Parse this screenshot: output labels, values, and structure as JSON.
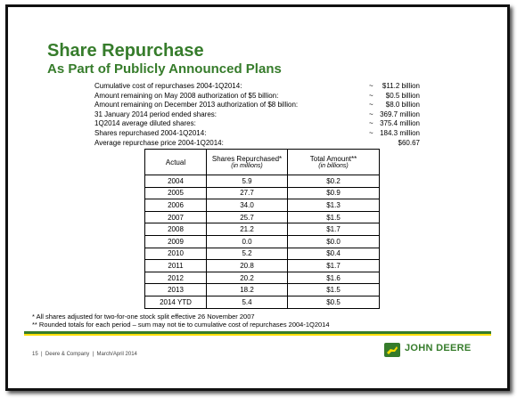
{
  "header": {
    "title": "Share Repurchase",
    "subtitle": "As Part of Publicly Announced Plans"
  },
  "summary": [
    {
      "label": "Cumulative cost of repurchases 2004-1Q2014:",
      "approx": "~",
      "value": "$11.2 billion"
    },
    {
      "label": "Amount remaining on May 2008 authorization of $5 billion:",
      "approx": "~",
      "value": "$0.5 billion"
    },
    {
      "label": "Amount remaining on December 2013 authorization of $8 billion:",
      "approx": "~",
      "value": "$8.0 billion"
    },
    {
      "label": "31 January 2014 period ended shares:",
      "approx": "~",
      "value": "369.7 million"
    },
    {
      "label": "1Q2014 average diluted shares:",
      "approx": "~",
      "value": "375.4 million"
    },
    {
      "label": "Shares repurchased 2004-1Q2014:",
      "approx": "~",
      "value": "184.3 million"
    },
    {
      "label": "Average repurchase price 2004-1Q2014:",
      "value": "$60.67"
    }
  ],
  "table": {
    "columns": [
      {
        "title": "Actual"
      },
      {
        "title": "Shares Repurchased*",
        "unit": "(in millions)"
      },
      {
        "title": "Total Amount**",
        "unit": "(in billions)"
      }
    ],
    "rows": [
      [
        "2004",
        "5.9",
        "$0.2"
      ],
      [
        "2005",
        "27.7",
        "$0.9"
      ],
      [
        "2006",
        "34.0",
        "$1.3"
      ],
      [
        "2007",
        "25.7",
        "$1.5"
      ],
      [
        "2008",
        "21.2",
        "$1.7"
      ],
      [
        "2009",
        "0.0",
        "$0.0"
      ],
      [
        "2010",
        "5.2",
        "$0.4"
      ],
      [
        "2011",
        "20.8",
        "$1.7"
      ],
      [
        "2012",
        "20.2",
        "$1.6"
      ],
      [
        "2013",
        "18.2",
        "$1.5"
      ],
      [
        "2014 YTD",
        "5.4",
        "$0.5"
      ]
    ]
  },
  "footnotes": [
    "* All shares adjusted for two-for-one stock split effective 26 November 2007",
    "** Rounded totals for each period – sum may not tie to cumulative cost of repurchases 2004-1Q2014"
  ],
  "footer": {
    "page": "15",
    "company": "Deere & Company",
    "date": "March/April 2014",
    "logo": "JOHN DEERE"
  }
}
